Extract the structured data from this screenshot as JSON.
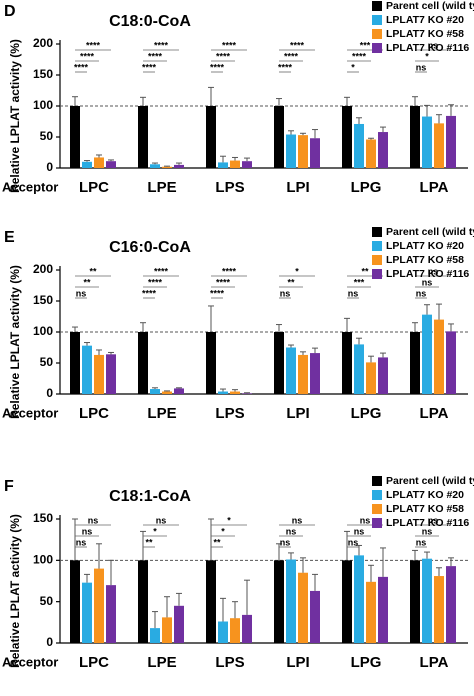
{
  "chart_data": [
    {
      "type": "bar",
      "panel_label": "D",
      "title": "C18:0-CoA",
      "y_label": "Relative LPLAT activity (%)",
      "x_label": "Acceptor",
      "categories": [
        "LPC",
        "LPE",
        "LPS",
        "LPI",
        "LPG",
        "LPA"
      ],
      "series": [
        {
          "name": "Parent cell (wild type)",
          "color": "#000000",
          "values": [
            100,
            100,
            100,
            100,
            100,
            100
          ],
          "errors": [
            15,
            14,
            30,
            12,
            14,
            15
          ]
        },
        {
          "name": "LPLAT7 KO #20",
          "color": "#29abe2",
          "values": [
            10,
            6,
            9,
            54,
            71,
            83
          ],
          "errors": [
            2,
            2,
            10,
            6,
            10,
            18
          ]
        },
        {
          "name": "LPLAT7 KO #58",
          "color": "#f7931e",
          "values": [
            17,
            2,
            12,
            53,
            46,
            72
          ],
          "errors": [
            4,
            1,
            5,
            3,
            2,
            14
          ]
        },
        {
          "name": "LPLAT7 KO #116",
          "color": "#7030a0",
          "values": [
            11,
            5,
            11,
            48,
            58,
            84
          ],
          "errors": [
            2,
            3,
            5,
            14,
            8,
            18
          ]
        }
      ],
      "significance": [
        [
          "****",
          "****",
          "****"
        ],
        [
          "****",
          "****",
          "****"
        ],
        [
          "****",
          "****",
          "****"
        ],
        [
          "****",
          "****",
          "****"
        ],
        [
          "***",
          "****",
          "*"
        ],
        [
          "ns",
          "*",
          "ns"
        ]
      ],
      "ylim": [
        0,
        200
      ],
      "yticks": [
        0,
        50,
        100,
        150,
        200
      ],
      "reference_line": 100,
      "legend": "upper right"
    },
    {
      "type": "bar",
      "panel_label": "E",
      "title": "C16:0-CoA",
      "y_label": "Relative LPLAT activity (%)",
      "x_label": "Acceptor",
      "categories": [
        "LPC",
        "LPE",
        "LPS",
        "LPI",
        "LPG",
        "LPA"
      ],
      "series": [
        {
          "name": "Parent cell (wild type)",
          "color": "#000000",
          "values": [
            100,
            100,
            100,
            100,
            100,
            100
          ],
          "errors": [
            8,
            15,
            42,
            12,
            22,
            15
          ]
        },
        {
          "name": "LPLAT7 KO #20",
          "color": "#29abe2",
          "values": [
            78,
            8,
            4,
            75,
            80,
            128
          ],
          "errors": [
            5,
            2,
            4,
            4,
            10,
            16
          ]
        },
        {
          "name": "LPLAT7 KO #58",
          "color": "#f7931e",
          "values": [
            63,
            4,
            4,
            63,
            51,
            120
          ],
          "errors": [
            8,
            1,
            3,
            5,
            10,
            25
          ]
        },
        {
          "name": "LPLAT7 KO #116",
          "color": "#7030a0",
          "values": [
            64,
            9,
            1,
            66,
            59,
            101
          ],
          "errors": [
            3,
            1,
            1,
            8,
            7,
            12
          ]
        }
      ],
      "significance": [
        [
          "**",
          "**",
          "ns"
        ],
        [
          "****",
          "****",
          "****"
        ],
        [
          "****",
          "****",
          "****"
        ],
        [
          "*",
          "**",
          "ns"
        ],
        [
          "**",
          "***",
          "ns"
        ],
        [
          "ns",
          "ns",
          "ns"
        ]
      ],
      "ylim": [
        0,
        200
      ],
      "yticks": [
        0,
        50,
        100,
        150,
        200
      ],
      "reference_line": 100,
      "legend": "upper right"
    },
    {
      "type": "bar",
      "panel_label": "F",
      "title": "C18:1-CoA",
      "y_label": "Relative LPLAT activity (%)",
      "x_label": "Acceptor",
      "categories": [
        "LPC",
        "LPE",
        "LPS",
        "LPI",
        "LPG",
        "LPA"
      ],
      "series": [
        {
          "name": "Parent cell (wild type)",
          "color": "#000000",
          "values": [
            100,
            100,
            100,
            100,
            100,
            100
          ],
          "errors": [
            50,
            35,
            50,
            20,
            35,
            12
          ]
        },
        {
          "name": "LPLAT7 KO #20",
          "color": "#29abe2",
          "values": [
            73,
            18,
            26,
            101,
            106,
            102
          ],
          "errors": [
            10,
            20,
            28,
            8,
            12,
            8
          ]
        },
        {
          "name": "LPLAT7 KO #58",
          "color": "#f7931e",
          "values": [
            90,
            31,
            30,
            85,
            74,
            81
          ],
          "errors": [
            30,
            25,
            20,
            18,
            20,
            10
          ]
        },
        {
          "name": "LPLAT7 KO #116",
          "color": "#7030a0",
          "values": [
            70,
            45,
            34,
            63,
            80,
            93
          ],
          "errors": [
            30,
            15,
            42,
            20,
            35,
            10
          ]
        }
      ],
      "significance": [
        [
          "ns",
          "ns",
          "ns"
        ],
        [
          "ns",
          "*",
          "**"
        ],
        [
          "*",
          "*",
          "**"
        ],
        [
          "ns",
          "ns",
          "ns"
        ],
        [
          "ns",
          "ns",
          "ns"
        ],
        [
          "ns",
          "ns",
          "ns"
        ]
      ],
      "ylim": [
        0,
        150
      ],
      "yticks": [
        0,
        50,
        100,
        150
      ],
      "reference_line": 100,
      "legend": "upper right"
    }
  ]
}
